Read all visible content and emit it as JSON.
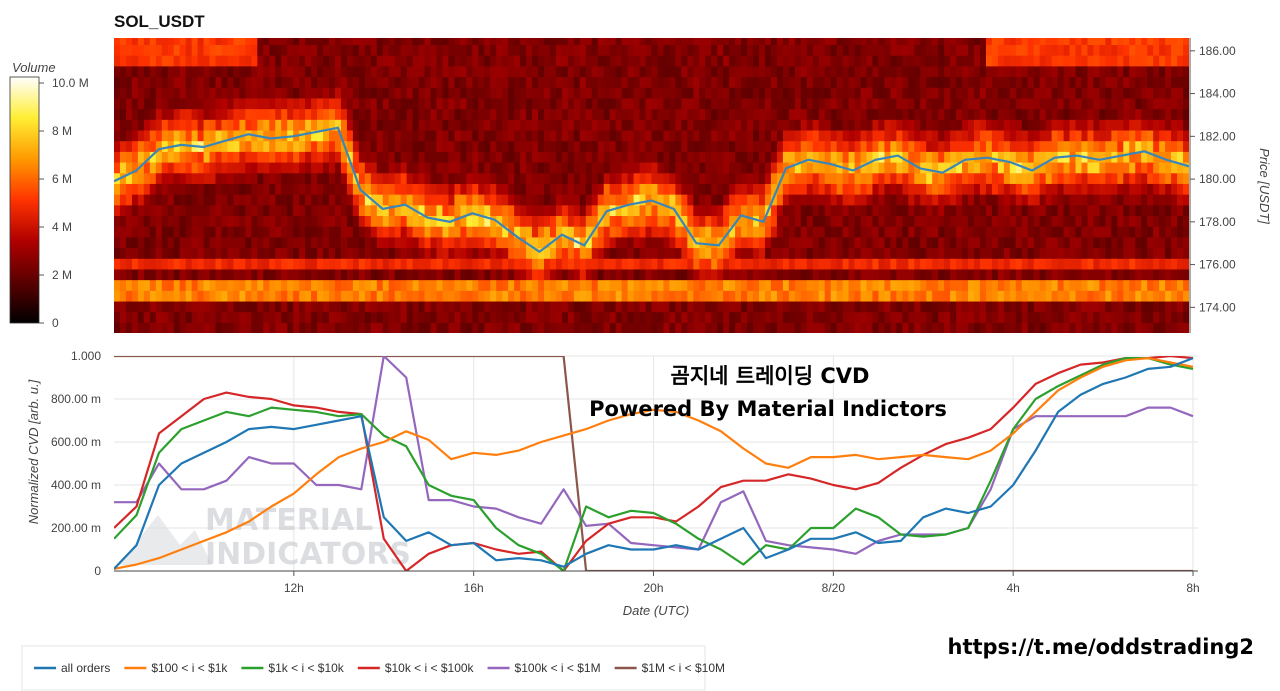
{
  "chart_data": [
    {
      "type": "heatmap",
      "title": "SOL_USDT",
      "colorbar": {
        "title": "Volume",
        "range": [
          0,
          10000000
        ],
        "ticks": [
          "0",
          "2 M",
          "4 M",
          "6 M",
          "8 M",
          "10.0 M"
        ],
        "colors": [
          "#000000",
          "#5a0000",
          "#b00000",
          "#ff3300",
          "#ff9900",
          "#ffee33",
          "#ffffff"
        ]
      },
      "y_right_label": "Price [USDT]",
      "y_ticks": [
        "174.00",
        "176.00",
        "178.00",
        "180.00",
        "182.00",
        "184.00",
        "186.00"
      ],
      "ylim": [
        172.8,
        186.6
      ],
      "price_series": {
        "name": "price",
        "x_hours": [
          0,
          0.5,
          1,
          1.5,
          2,
          2.5,
          3,
          3.5,
          4,
          4.5,
          5,
          5.5,
          6,
          6.5,
          7,
          7.5,
          8,
          8.5,
          9,
          9.5,
          10,
          10.5,
          11,
          11.5,
          12,
          12.5,
          13,
          13.5,
          14,
          14.5,
          15,
          15.5,
          16,
          16.5,
          17,
          17.5,
          18,
          18.5,
          19,
          19.5,
          20,
          20.5,
          21,
          21.5,
          22,
          22.5,
          23,
          23.5,
          24
        ],
        "values": [
          179.9,
          180.4,
          181.4,
          181.6,
          181.5,
          181.8,
          182.1,
          181.9,
          182.0,
          182.2,
          182.4,
          179.5,
          178.6,
          178.8,
          178.2,
          178.0,
          178.4,
          178.1,
          177.3,
          176.6,
          177.4,
          176.9,
          178.5,
          178.8,
          179.0,
          178.6,
          177.0,
          176.9,
          178.3,
          178.0,
          180.5,
          180.9,
          180.7,
          180.4,
          180.9,
          181.1,
          180.5,
          180.3,
          180.9,
          181.0,
          180.8,
          180.4,
          181.0,
          181.1,
          180.9,
          181.1,
          181.3,
          180.9,
          180.6
        ]
      }
    },
    {
      "type": "line",
      "xlabel": "Date (UTC)",
      "ylabel": "Normalized CVD [arb. u.]",
      "ylim": [
        0,
        1
      ],
      "y_ticks": [
        "0",
        "200.00 m",
        "400.00 m",
        "600.00 m",
        "800.00 m",
        "1.000"
      ],
      "x_ticks": [
        {
          "hour": 4,
          "label": "12h"
        },
        {
          "hour": 8,
          "label": "16h"
        },
        {
          "hour": 12,
          "label": "20h"
        },
        {
          "hour": 16,
          "label": "8/20"
        },
        {
          "hour": 20,
          "label": "4h"
        },
        {
          "hour": 24,
          "label": "8h"
        }
      ],
      "grid": true,
      "legend_position": "bottom",
      "x_hours": [
        0,
        0.5,
        1,
        1.5,
        2,
        2.5,
        3,
        3.5,
        4,
        4.5,
        5,
        5.5,
        6,
        6.5,
        7,
        7.5,
        8,
        8.5,
        9,
        9.5,
        10,
        10.5,
        11,
        11.5,
        12,
        12.5,
        13,
        13.5,
        14,
        14.5,
        15,
        15.5,
        16,
        16.5,
        17,
        17.5,
        18,
        18.5,
        19,
        19.5,
        20,
        20.5,
        21,
        21.5,
        22,
        22.5,
        23,
        23.5,
        24
      ],
      "series": [
        {
          "name": "all orders",
          "color": "#1f77b4",
          "values": [
            0.01,
            0.12,
            0.4,
            0.5,
            0.55,
            0.6,
            0.66,
            0.67,
            0.66,
            0.68,
            0.7,
            0.72,
            0.25,
            0.14,
            0.18,
            0.12,
            0.13,
            0.05,
            0.06,
            0.05,
            0.02,
            0.08,
            0.12,
            0.1,
            0.1,
            0.12,
            0.1,
            0.15,
            0.2,
            0.06,
            0.1,
            0.15,
            0.15,
            0.18,
            0.13,
            0.14,
            0.25,
            0.29,
            0.27,
            0.3,
            0.4,
            0.56,
            0.74,
            0.82,
            0.87,
            0.9,
            0.94,
            0.95,
            0.99
          ]
        },
        {
          "name": "$100 < i < $1k",
          "color": "#ff7f0e",
          "values": [
            0.01,
            0.03,
            0.06,
            0.1,
            0.14,
            0.18,
            0.23,
            0.3,
            0.36,
            0.45,
            0.53,
            0.57,
            0.6,
            0.65,
            0.61,
            0.52,
            0.55,
            0.54,
            0.56,
            0.6,
            0.63,
            0.66,
            0.7,
            0.73,
            0.75,
            0.74,
            0.7,
            0.65,
            0.57,
            0.5,
            0.48,
            0.53,
            0.53,
            0.54,
            0.52,
            0.53,
            0.54,
            0.53,
            0.52,
            0.56,
            0.64,
            0.74,
            0.84,
            0.9,
            0.95,
            0.98,
            0.99,
            0.97,
            0.95
          ]
        },
        {
          "name": "$1k < i < $10k",
          "color": "#2ca02c",
          "values": [
            0.15,
            0.26,
            0.55,
            0.66,
            0.7,
            0.74,
            0.72,
            0.76,
            0.75,
            0.74,
            0.72,
            0.73,
            0.63,
            0.58,
            0.4,
            0.35,
            0.33,
            0.2,
            0.12,
            0.08,
            0.0,
            0.3,
            0.25,
            0.28,
            0.27,
            0.22,
            0.15,
            0.1,
            0.03,
            0.12,
            0.1,
            0.2,
            0.2,
            0.29,
            0.25,
            0.17,
            0.16,
            0.17,
            0.2,
            0.42,
            0.66,
            0.8,
            0.86,
            0.91,
            0.96,
            0.99,
            0.99,
            0.96,
            0.94
          ]
        },
        {
          "name": "$10k < i < $100k",
          "color": "#d62728",
          "values": [
            0.2,
            0.3,
            0.64,
            0.72,
            0.8,
            0.83,
            0.81,
            0.8,
            0.77,
            0.76,
            0.74,
            0.73,
            0.15,
            0.0,
            0.08,
            0.12,
            0.13,
            0.1,
            0.08,
            0.09,
            0.0,
            0.14,
            0.22,
            0.25,
            0.25,
            0.23,
            0.3,
            0.39,
            0.42,
            0.42,
            0.45,
            0.43,
            0.4,
            0.38,
            0.41,
            0.48,
            0.54,
            0.59,
            0.62,
            0.66,
            0.76,
            0.87,
            0.92,
            0.96,
            0.97,
            0.99,
            0.99,
            1.0,
            0.99
          ]
        },
        {
          "name": "$100k < i < $1M",
          "color": "#9467bd",
          "values": [
            0.32,
            0.32,
            0.5,
            0.38,
            0.38,
            0.42,
            0.53,
            0.5,
            0.5,
            0.4,
            0.4,
            0.38,
            1.0,
            0.9,
            0.33,
            0.33,
            0.3,
            0.29,
            0.25,
            0.22,
            0.38,
            0.21,
            0.22,
            0.13,
            0.12,
            0.11,
            0.1,
            0.32,
            0.37,
            0.14,
            0.12,
            0.11,
            0.1,
            0.08,
            0.14,
            0.17,
            0.17,
            0.17,
            0.2,
            0.38,
            0.66,
            0.72,
            0.72,
            0.72,
            0.72,
            0.72,
            0.76,
            0.76,
            0.72
          ]
        },
        {
          "name": "$1M < i < $10M",
          "color": "#8c564b",
          "values": [
            1.0,
            1.0,
            1.0,
            1.0,
            1.0,
            1.0,
            1.0,
            1.0,
            1.0,
            1.0,
            1.0,
            1.0,
            1.0,
            1.0,
            1.0,
            1.0,
            1.0,
            1.0,
            1.0,
            1.0,
            1.0,
            0.0,
            0.0,
            0.0,
            0.0,
            0.0,
            0.0,
            0.0,
            0.0,
            0.0,
            0.0,
            0.0,
            0.0,
            0.0,
            0.0,
            0.0,
            0.0,
            0.0,
            0.0,
            0.0,
            0.0,
            0.0,
            0.0,
            0.0,
            0.0,
            0.0,
            0.0,
            0.0,
            0.0
          ]
        }
      ],
      "annotations": [
        "곰지네 트레이딩 CVD",
        "Powered By Material Indictors"
      ]
    }
  ],
  "watermark": [
    "MATERIAL",
    "INDICATORS"
  ],
  "footer_link": "https://t.me/oddstrading2"
}
